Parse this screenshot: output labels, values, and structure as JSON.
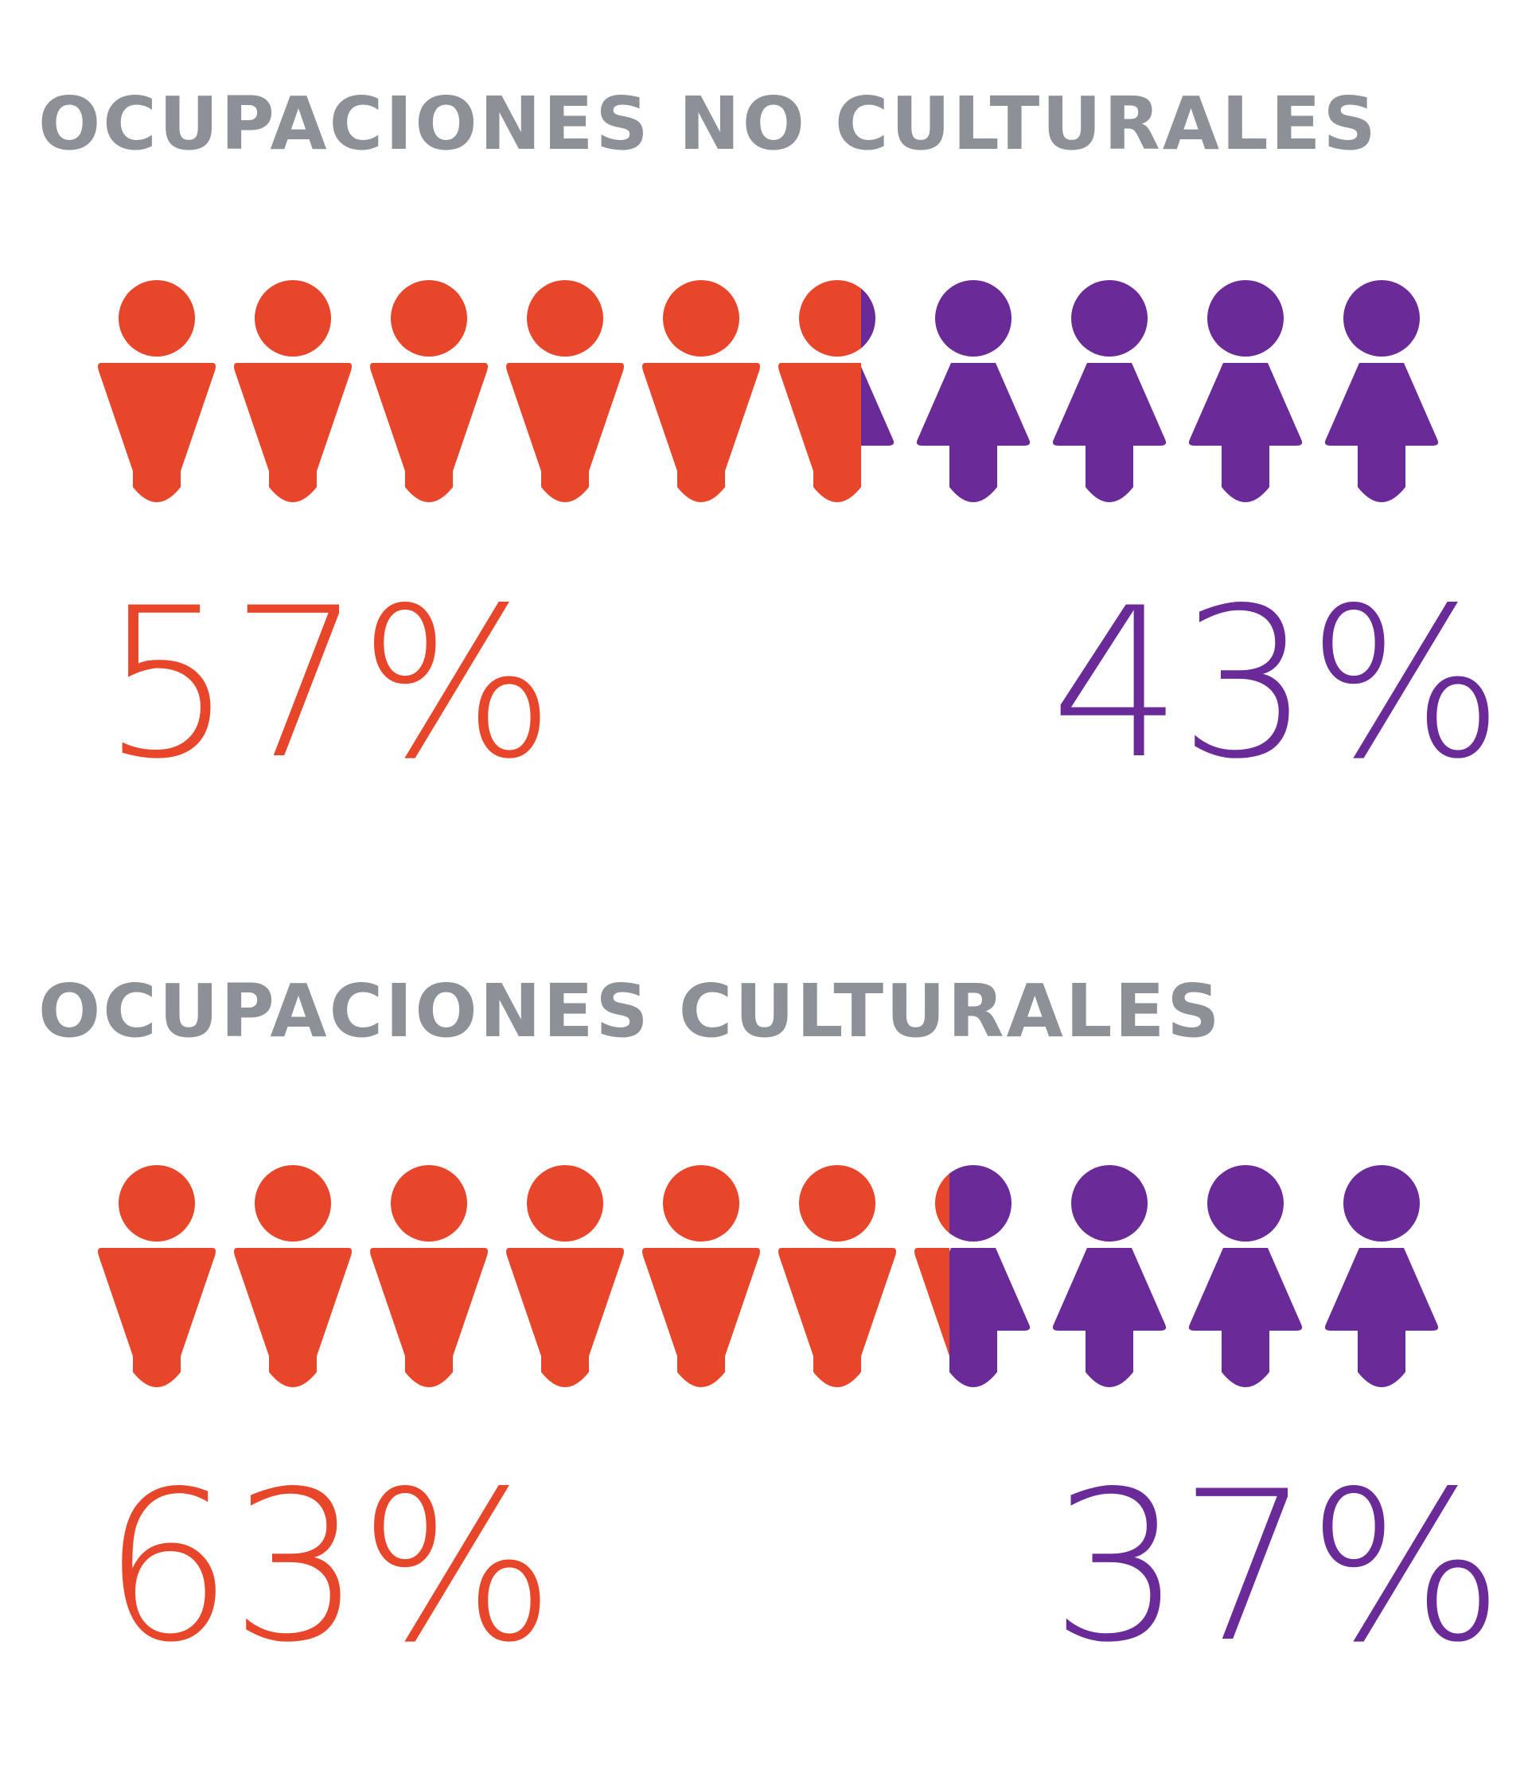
{
  "colors": {
    "male": "#e8462a",
    "female": "#6a2a98",
    "heading": "#8b9197",
    "background": "#ffffff"
  },
  "icons": {
    "male": "male-person-icon",
    "female": "female-person-icon"
  },
  "chart_data": [
    {
      "type": "pictogram",
      "title": "OCUPACIONES NO CULTURALES",
      "total_icons": 10,
      "series": [
        {
          "values": [
            57
          ],
          "label": "57%",
          "color": "#e8462a",
          "icon": "male-person-icon"
        },
        {
          "values": [
            43
          ],
          "label": "43%",
          "color": "#6a2a98",
          "icon": "female-person-icon"
        }
      ]
    },
    {
      "type": "pictogram",
      "title": "OCUPACIONES CULTURALES",
      "total_icons": 10,
      "series": [
        {
          "values": [
            63
          ],
          "label": "63%",
          "color": "#e8462a",
          "icon": "male-person-icon"
        },
        {
          "values": [
            37
          ],
          "label": "37%",
          "color": "#6a2a98",
          "icon": "female-person-icon"
        }
      ]
    }
  ]
}
